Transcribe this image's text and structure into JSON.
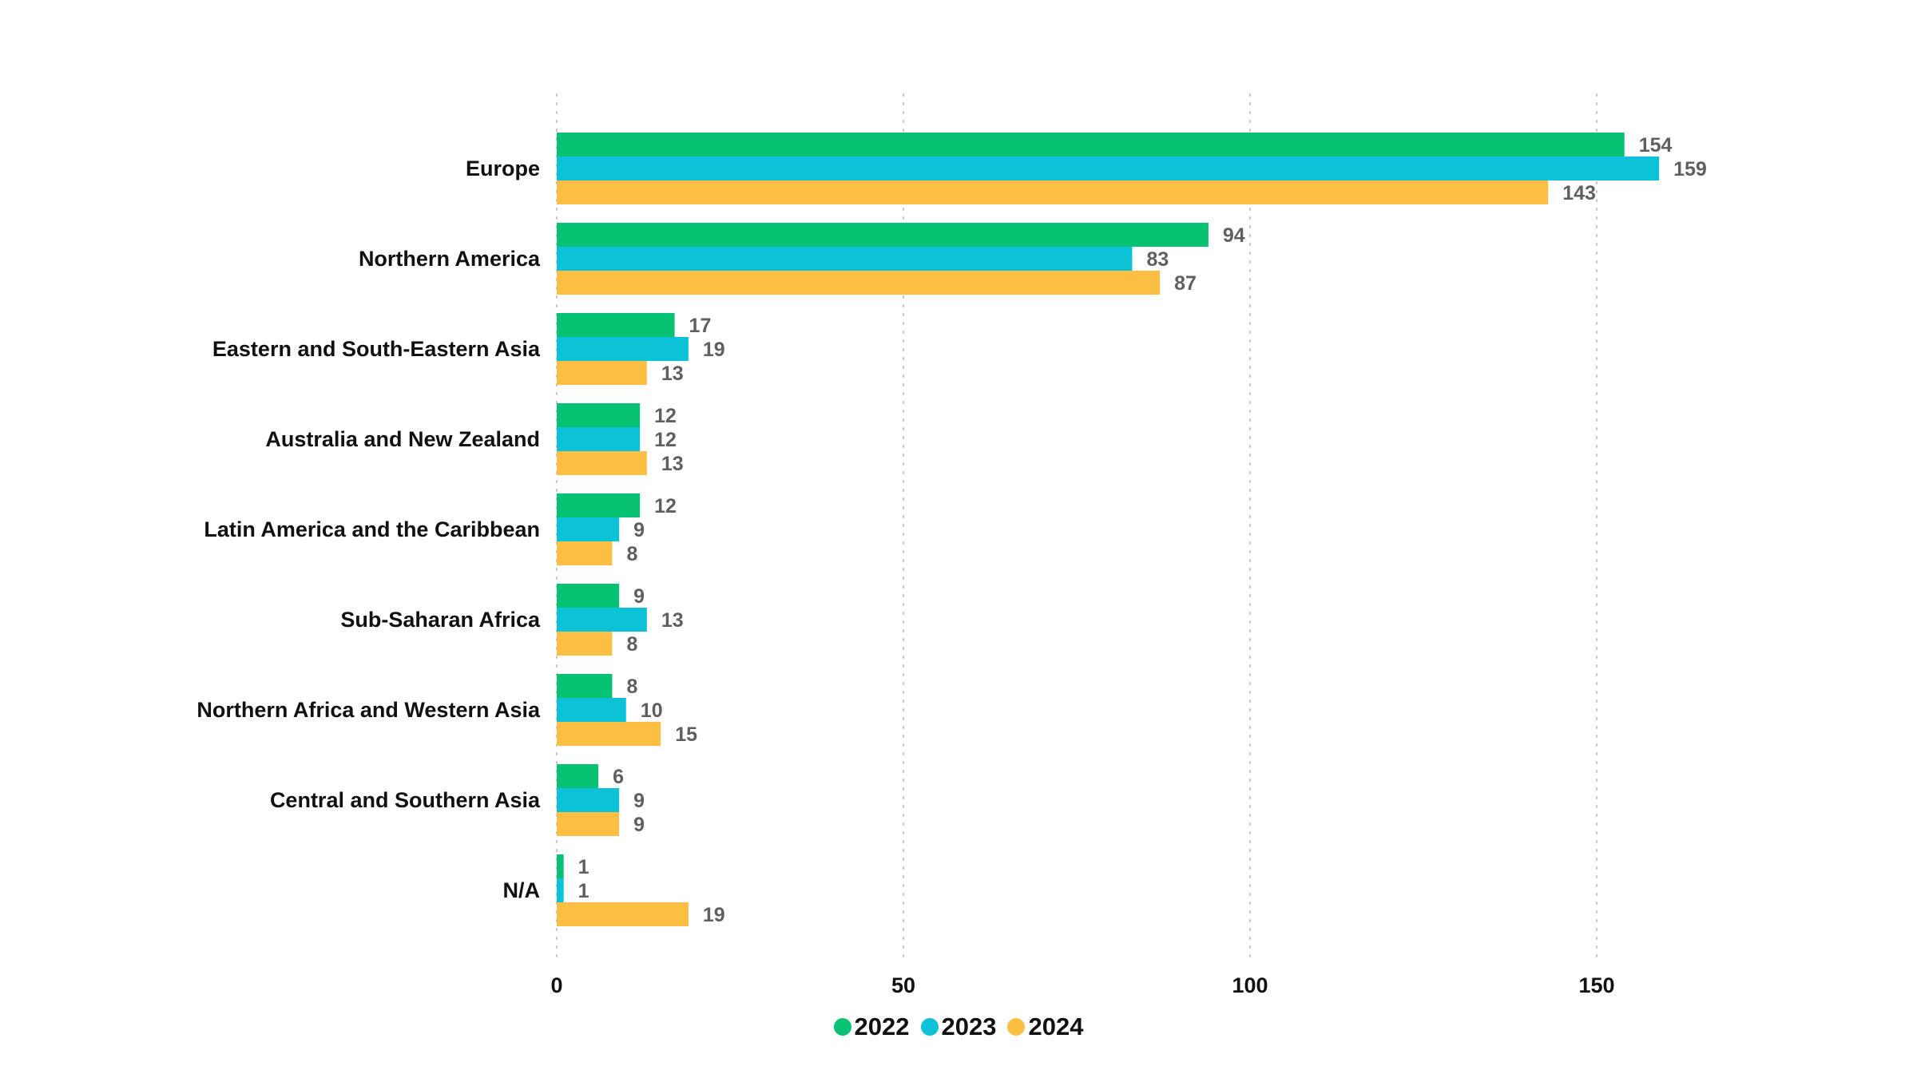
{
  "chart_data": {
    "type": "bar",
    "orientation": "horizontal",
    "title": "",
    "xlabel": "",
    "ylabel": "",
    "xlim": [
      0,
      180
    ],
    "x_ticks": [
      0,
      50,
      100,
      150
    ],
    "x_tick_labels": [
      "0",
      "50",
      "100",
      "150"
    ],
    "grid": true,
    "legend_position": "bottom-center",
    "data_labels": true,
    "categories": [
      "Europe",
      "Northern America",
      "Eastern and South-Eastern Asia",
      "Australia and New Zealand",
      "Latin America and the Caribbean",
      "Sub-Saharan Africa",
      "Northern Africa and Western Asia",
      "Central and Southern Asia",
      "N/A"
    ],
    "series": [
      {
        "name": "2022",
        "color": "#06c272",
        "values": [
          154,
          94,
          17,
          12,
          12,
          9,
          8,
          6,
          1
        ]
      },
      {
        "name": "2023",
        "color": "#0bc2d6",
        "values": [
          159,
          83,
          19,
          12,
          9,
          13,
          10,
          9,
          1
        ]
      },
      {
        "name": "2024",
        "color": "#fcbf44",
        "values": [
          143,
          87,
          13,
          13,
          8,
          8,
          15,
          9,
          19
        ]
      }
    ]
  }
}
